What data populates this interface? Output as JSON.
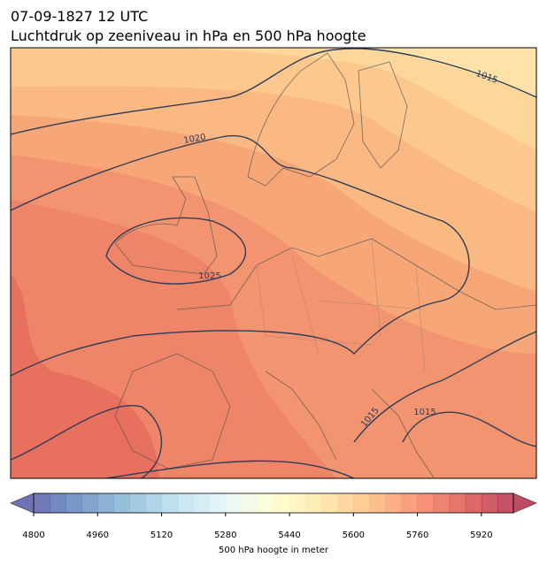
{
  "header": {
    "title_line1": "07-09-1827 12 UTC",
    "title_line2": "Luchtdruk op zeeniveau in hPa en 500 hPa hoogte"
  },
  "isobar_labels": [
    "1015",
    "1020",
    "1025",
    "1015",
    "1015"
  ],
  "colorbar": {
    "lim": [
      4800,
      6000
    ],
    "ticks": [
      4800,
      4960,
      5120,
      5280,
      5440,
      5600,
      5760,
      5920
    ],
    "label": "500 hPa hoogte in meter"
  }
}
